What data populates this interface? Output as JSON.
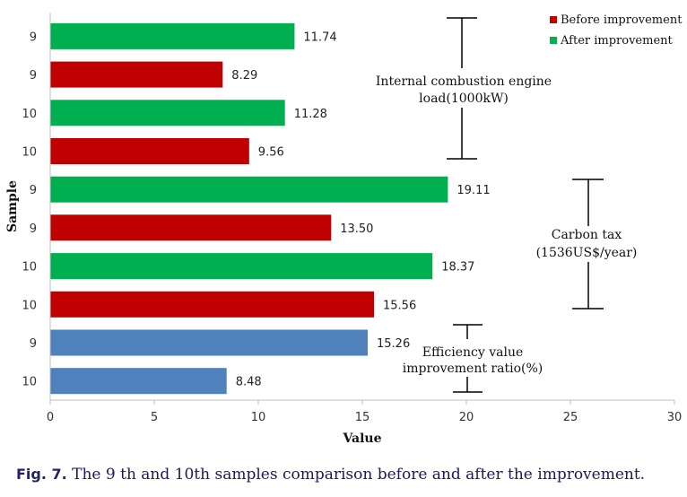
{
  "chart_data": {
    "type": "bar",
    "orientation": "horizontal",
    "categories": [
      "9",
      "9",
      "10",
      "10",
      "9",
      "9",
      "10",
      "10",
      "9",
      "10"
    ],
    "values": [
      11.74,
      8.29,
      11.28,
      9.56,
      19.11,
      13.5,
      18.37,
      15.56,
      15.26,
      8.48
    ],
    "value_labels": [
      "11.74",
      "8.29",
      "11.28",
      "9.56",
      "19.11",
      "13.50",
      "18.37",
      "15.56",
      "15.26",
      "8.48"
    ],
    "bar_series": [
      "After improvement",
      "Before improvement",
      "After improvement",
      "Before improvement",
      "After improvement",
      "Before improvement",
      "After improvement",
      "Before improvement",
      "Efficiency",
      "Efficiency"
    ],
    "series_colors": {
      "After improvement": "#00b050",
      "Before improvement": "#c00000",
      "Efficiency": "#4f81bd"
    },
    "legend": [
      {
        "name": "Before improvement",
        "color": "#c00000"
      },
      {
        "name": "After improvement",
        "color": "#00b050"
      }
    ],
    "xlabel": "Value",
    "ylabel": "Sample",
    "xlim": [
      0,
      30
    ],
    "xticks": [
      0,
      5,
      10,
      15,
      20,
      25,
      30
    ],
    "grid": false,
    "legend_position": "top-right",
    "annotations": [
      {
        "lines": [
          "Internal combustion engine",
          "load(1000kW)"
        ],
        "group_rows": [
          0,
          1,
          2,
          3
        ]
      },
      {
        "lines": [
          "Carbon tax",
          "(1536US$/year)"
        ],
        "group_rows": [
          4,
          5,
          6,
          7
        ]
      },
      {
        "lines": [
          "Efficiency value",
          "improvement ratio(%)"
        ],
        "group_rows": [
          8,
          9
        ]
      }
    ]
  },
  "caption": {
    "prefix": "Fig. 7.",
    "text": " The 9 th and 10th samples comparison before and after the improvement."
  }
}
